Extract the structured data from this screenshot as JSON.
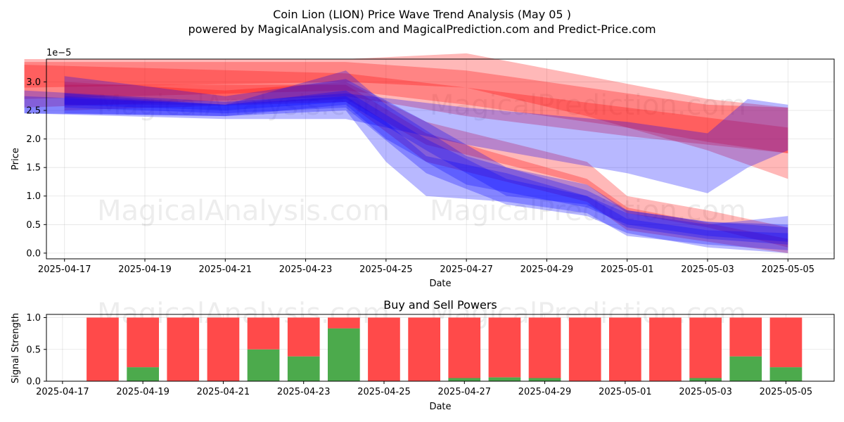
{
  "title": "Coin Lion (LION) Price Wave Trend Analysis (May 05 )",
  "subtitle": "powered by MagicalAnalysis.com and MagicalPrediction.com and Predict-Price.com",
  "watermarks": [
    "MagicalAnalysis.com",
    "MagicalPrediction.com"
  ],
  "chart_data": [
    {
      "type": "area",
      "title": "",
      "xlabel": "Date",
      "ylabel": "Price",
      "y_multiplier_label": "1e−5",
      "x_range": [
        "2025-04-16",
        "2025-05-06"
      ],
      "ylim": [
        -0.1,
        3.4
      ],
      "x_ticks": [
        "2025-04-17",
        "2025-04-19",
        "2025-04-21",
        "2025-04-23",
        "2025-04-25",
        "2025-04-27",
        "2025-04-29",
        "2025-05-01",
        "2025-05-03",
        "2025-05-05"
      ],
      "y_ticks": [
        "0.0",
        "0.5",
        "1.0",
        "1.5",
        "2.0",
        "2.5",
        "3.0"
      ],
      "y_tick_values": [
        0.0,
        0.5,
        1.0,
        1.5,
        2.0,
        2.5,
        3.0
      ],
      "grid": true,
      "colors": {
        "red": "#ff0000",
        "blue": "#0000ff"
      },
      "bands": [
        {
          "color": "red",
          "points": [
            [
              "2025-04-16",
              2.7,
              3.35
            ],
            [
              "2025-04-24",
              2.85,
              3.35
            ],
            [
              "2025-04-27",
              2.6,
              3.2
            ],
            [
              "2025-05-01",
              2.2,
              2.8
            ],
            [
              "2025-05-03",
              1.95,
              2.6
            ],
            [
              "2025-05-05",
              1.75,
              2.55
            ]
          ]
        },
        {
          "color": "red",
          "points": [
            [
              "2025-04-16",
              2.9,
              3.4
            ],
            [
              "2025-04-24",
              3.0,
              3.4
            ],
            [
              "2025-04-27",
              2.9,
              3.5
            ],
            [
              "2025-04-30",
              2.4,
              3.1
            ],
            [
              "2025-05-03",
              1.8,
              2.7
            ],
            [
              "2025-05-05",
              1.3,
              2.55
            ]
          ]
        },
        {
          "color": "red",
          "points": [
            [
              "2025-04-16",
              2.55,
              3.3
            ],
            [
              "2025-04-24",
              2.75,
              3.15
            ],
            [
              "2025-04-27",
              2.4,
              2.9
            ],
            [
              "2025-05-01",
              2.05,
              2.55
            ],
            [
              "2025-05-05",
              1.75,
              2.2
            ]
          ]
        },
        {
          "color": "red",
          "points": [
            [
              "2025-04-17",
              2.6,
              3.0
            ],
            [
              "2025-04-21",
              2.6,
              2.85
            ],
            [
              "2025-04-24",
              2.7,
              3.0
            ],
            [
              "2025-04-26",
              1.9,
              2.3
            ],
            [
              "2025-04-30",
              1.2,
              1.6
            ],
            [
              "2025-05-01",
              0.7,
              1.0
            ],
            [
              "2025-05-03",
              0.45,
              0.75
            ],
            [
              "2025-05-05",
              0.1,
              0.45
            ]
          ]
        },
        {
          "color": "red",
          "points": [
            [
              "2025-04-17",
              2.5,
              2.95
            ],
            [
              "2025-04-24",
              2.65,
              2.95
            ],
            [
              "2025-04-26",
              1.6,
              2.1
            ],
            [
              "2025-04-30",
              0.9,
              1.3
            ],
            [
              "2025-05-01",
              0.4,
              0.8
            ],
            [
              "2025-05-05",
              0.0,
              0.25
            ]
          ]
        },
        {
          "color": "blue",
          "points": [
            [
              "2025-04-16",
              2.45,
              2.85
            ],
            [
              "2025-04-21",
              2.35,
              2.65
            ],
            [
              "2025-04-24",
              2.35,
              2.8
            ],
            [
              "2025-04-27",
              1.9,
              2.55
            ],
            [
              "2025-05-01",
              1.4,
              2.3
            ],
            [
              "2025-05-03",
              1.05,
              2.1
            ],
            [
              "2025-05-04",
              1.5,
              2.7
            ],
            [
              "2025-05-05",
              1.8,
              2.6
            ]
          ]
        },
        {
          "color": "blue",
          "points": [
            [
              "2025-04-16",
              2.45,
              2.75
            ],
            [
              "2025-04-21",
              2.4,
              2.6
            ],
            [
              "2025-04-24",
              2.5,
              2.75
            ],
            [
              "2025-04-25",
              1.6,
              2.3
            ],
            [
              "2025-04-26",
              1.0,
              1.7
            ],
            [
              "2025-04-28",
              0.9,
              1.4
            ],
            [
              "2025-04-30",
              0.7,
              1.0
            ],
            [
              "2025-05-01",
              0.3,
              0.7
            ],
            [
              "2025-05-03",
              0.15,
              0.5
            ],
            [
              "2025-05-05",
              0.05,
              0.65
            ]
          ]
        },
        {
          "color": "blue",
          "points": [
            [
              "2025-04-17",
              2.45,
              2.75
            ],
            [
              "2025-04-21",
              2.4,
              2.6
            ],
            [
              "2025-04-24",
              2.6,
              3.2
            ],
            [
              "2025-04-25",
              2.0,
              2.6
            ],
            [
              "2025-04-27",
              1.2,
              1.7
            ],
            [
              "2025-04-30",
              0.8,
              1.1
            ],
            [
              "2025-05-01",
              0.5,
              0.75
            ],
            [
              "2025-05-03",
              0.3,
              0.55
            ],
            [
              "2025-05-05",
              0.2,
              0.45
            ]
          ]
        },
        {
          "color": "blue",
          "points": [
            [
              "2025-04-17",
              2.55,
              2.8
            ],
            [
              "2025-04-21",
              2.45,
              2.6
            ],
            [
              "2025-04-24",
              2.55,
              2.85
            ],
            [
              "2025-04-26",
              1.4,
              2.0
            ],
            [
              "2025-04-28",
              0.85,
              1.3
            ],
            [
              "2025-04-30",
              0.65,
              1.0
            ],
            [
              "2025-05-01",
              0.35,
              0.6
            ],
            [
              "2025-05-03",
              0.1,
              0.4
            ],
            [
              "2025-05-05",
              0.0,
              0.35
            ]
          ]
        },
        {
          "color": "blue",
          "points": [
            [
              "2025-04-17",
              2.6,
              3.1
            ],
            [
              "2025-04-21",
              2.5,
              2.75
            ],
            [
              "2025-04-24",
              2.65,
              3.05
            ],
            [
              "2025-04-26",
              1.8,
              2.3
            ],
            [
              "2025-04-28",
              1.0,
              1.5
            ],
            [
              "2025-04-30",
              0.85,
              1.2
            ],
            [
              "2025-05-01",
              0.45,
              0.75
            ],
            [
              "2025-05-03",
              0.25,
              0.55
            ],
            [
              "2025-05-05",
              0.15,
              0.5
            ]
          ]
        }
      ]
    },
    {
      "type": "bar",
      "stacked": true,
      "title": "Buy and Sell Powers",
      "xlabel": "Date",
      "ylabel": "Signal Strength",
      "ylim": [
        0,
        1.05
      ],
      "x_range": [
        "2025-04-17",
        "2025-05-06"
      ],
      "x_ticks": [
        "2025-04-17",
        "2025-04-19",
        "2025-04-21",
        "2025-04-23",
        "2025-04-25",
        "2025-04-27",
        "2025-04-29",
        "2025-05-01",
        "2025-05-03",
        "2025-05-05"
      ],
      "y_ticks": [
        "0.0",
        "0.5",
        "1.0"
      ],
      "y_tick_values": [
        0.0,
        0.5,
        1.0
      ],
      "grid": true,
      "colors": {
        "buy": "#4caa4c",
        "sell": "#ff4a4a"
      },
      "categories": [
        "2025-04-18",
        "2025-04-19",
        "2025-04-20",
        "2025-04-21",
        "2025-04-22",
        "2025-04-23",
        "2025-04-24",
        "2025-04-25",
        "2025-04-26",
        "2025-04-27",
        "2025-04-28",
        "2025-04-29",
        "2025-04-30",
        "2025-05-01",
        "2025-05-02",
        "2025-05-03",
        "2025-05-04",
        "2025-05-05"
      ],
      "series": [
        {
          "values": [
            0.0,
            0.22,
            0.0,
            0.0,
            0.5,
            0.39,
            0.83,
            0.0,
            0.0,
            0.05,
            0.06,
            0.05,
            0.0,
            0.0,
            0.0,
            0.05,
            0.39,
            0.22
          ]
        },
        {
          "values": [
            1.0,
            0.78,
            1.0,
            1.0,
            0.5,
            0.61,
            0.17,
            1.0,
            1.0,
            0.95,
            0.94,
            0.95,
            1.0,
            1.0,
            1.0,
            0.95,
            0.61,
            0.78
          ]
        }
      ]
    }
  ]
}
